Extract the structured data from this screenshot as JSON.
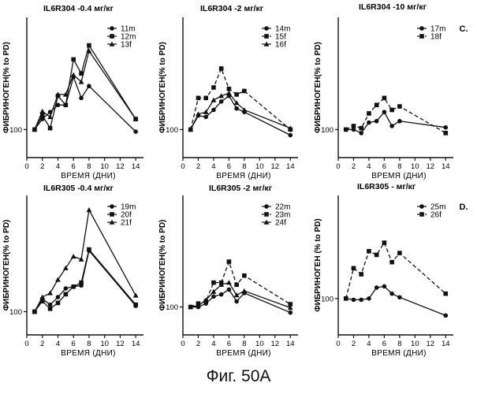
{
  "caption": "Фиг. 50A",
  "chart_data": [
    {
      "type": "line",
      "title": "IL6R304 -0.4 мг/кг",
      "corner_label": "",
      "xlabel": "ВРЕМЯ (ДНИ)",
      "ylabel": "ФИБРИНОГЕН(% to PD)",
      "x_ticks": [
        0,
        2,
        4,
        6,
        8,
        10,
        12,
        14
      ],
      "y_ticks": [
        100
      ],
      "xlim": [
        0,
        15
      ],
      "ylim": [
        60,
        260
      ],
      "legend_position": "top-right",
      "series": [
        {
          "name": "11m",
          "marker": "circle",
          "dash": "solid",
          "x": [
            1,
            2,
            3,
            4,
            5,
            6,
            7,
            8,
            14
          ],
          "y": [
            100,
            115,
            125,
            135,
            135,
            175,
            145,
            162,
            97
          ]
        },
        {
          "name": "12m",
          "marker": "square",
          "dash": "solid",
          "x": [
            1,
            2,
            3,
            4,
            5,
            6,
            7,
            8,
            14
          ],
          "y": [
            100,
            120,
            102,
            148,
            135,
            200,
            180,
            220,
            115
          ]
        },
        {
          "name": "13f",
          "marker": "triangle",
          "dash": "solid",
          "x": [
            1,
            2,
            3,
            4,
            5,
            6,
            7,
            8,
            14
          ],
          "y": [
            100,
            126,
            118,
            150,
            150,
            178,
            168,
            212,
            115
          ]
        }
      ]
    },
    {
      "type": "line",
      "title": "IL6R304 -2 мг/кг",
      "corner_label": "",
      "xlabel": "ВРЕМЯ (ДНИ)",
      "ylabel": "ФИБРИНОГЕН(% to PD)",
      "x_ticks": [
        0,
        2,
        4,
        6,
        8,
        10,
        12,
        14
      ],
      "y_ticks": [
        100
      ],
      "xlim": [
        0,
        15
      ],
      "ylim": [
        60,
        260
      ],
      "legend_position": "top-right",
      "series": [
        {
          "name": "14m",
          "marker": "circle",
          "dash": "solid",
          "x": [
            1,
            2,
            3,
            4,
            5,
            6,
            7,
            8,
            14
          ],
          "y": [
            100,
            120,
            118,
            128,
            140,
            148,
            130,
            125,
            92
          ]
        },
        {
          "name": "15f",
          "marker": "square",
          "dash": "dashed",
          "x": [
            1,
            2,
            3,
            4,
            5,
            6,
            7,
            8,
            14
          ],
          "y": [
            100,
            145,
            145,
            160,
            187,
            158,
            150,
            155,
            100
          ]
        },
        {
          "name": "16f",
          "marker": "triangle",
          "dash": "solid",
          "x": [
            1,
            2,
            3,
            4,
            5,
            6,
            7,
            8,
            14
          ],
          "y": [
            100,
            122,
            125,
            142,
            148,
            152,
            138,
            128,
            102
          ]
        }
      ]
    },
    {
      "type": "line",
      "title": "IL6R304 -10 мг/кг",
      "corner_label": "C.",
      "xlabel": "ВРЕМЯ (ДНИ)",
      "ylabel": "ФИБРИНОГЕН(% to PD)",
      "x_ticks": [
        0,
        2,
        4,
        6,
        8,
        10,
        12,
        14
      ],
      "y_ticks": [
        100
      ],
      "xlim": [
        0,
        15
      ],
      "ylim": [
        60,
        260
      ],
      "legend_position": "top-right",
      "series": [
        {
          "name": "17m",
          "marker": "circle",
          "dash": "solid",
          "x": [
            1,
            2,
            3,
            4,
            5,
            6,
            7,
            8,
            14
          ],
          "y": [
            100,
            100,
            95,
            110,
            112,
            125,
            105,
            112,
            103
          ]
        },
        {
          "name": "18f",
          "marker": "square",
          "dash": "dashed",
          "x": [
            1,
            2,
            3,
            4,
            5,
            6,
            7,
            8,
            14
          ],
          "y": [
            100,
            105,
            102,
            123,
            135,
            145,
            128,
            133,
            95
          ]
        }
      ]
    },
    {
      "type": "line",
      "title": "IL6R305 -0.4 мг/кг",
      "corner_label": "",
      "xlabel": "ВРЕМЯ (ДНИ)",
      "ylabel": "ФИБРИНОГЕН(% to PD)",
      "x_ticks": [
        0,
        2,
        4,
        6,
        8,
        10,
        12,
        14
      ],
      "y_ticks": [
        100
      ],
      "xlim": [
        0,
        15
      ],
      "ylim": [
        60,
        300
      ],
      "legend_position": "top-right",
      "series": [
        {
          "name": "19m",
          "marker": "circle",
          "dash": "solid",
          "x": [
            1,
            2,
            3,
            4,
            5,
            6,
            7,
            8,
            14
          ],
          "y": [
            100,
            122,
            112,
            125,
            140,
            143,
            145,
            205,
            110
          ]
        },
        {
          "name": "20f",
          "marker": "square",
          "dash": "solid",
          "x": [
            1,
            2,
            3,
            4,
            5,
            6,
            7,
            8,
            14
          ],
          "y": [
            100,
            118,
            105,
            115,
            130,
            143,
            150,
            207,
            112
          ]
        },
        {
          "name": "21f",
          "marker": "triangle",
          "dash": "solid",
          "x": [
            1,
            2,
            3,
            4,
            5,
            6,
            7,
            8,
            14
          ],
          "y": [
            100,
            125,
            132,
            155,
            175,
            195,
            190,
            275,
            128
          ]
        }
      ]
    },
    {
      "type": "line",
      "title": "IL6R305 -2 мг/кг",
      "corner_label": "",
      "xlabel": "ВРЕМЯ (ДНИ)",
      "ylabel": "ФИБРИНОГЕН(% to PD)",
      "x_ticks": [
        0,
        2,
        4,
        6,
        8,
        10,
        12,
        14
      ],
      "y_ticks": [
        100
      ],
      "xlim": [
        0,
        15
      ],
      "ylim": [
        60,
        260
      ],
      "legend_position": "top-right",
      "series": [
        {
          "name": "22m",
          "marker": "circle",
          "dash": "solid",
          "x": [
            1,
            2,
            3,
            4,
            5,
            6,
            7,
            8,
            14
          ],
          "y": [
            100,
            100,
            105,
            115,
            118,
            125,
            108,
            120,
            92
          ]
        },
        {
          "name": "23m",
          "marker": "square",
          "dash": "dashed",
          "x": [
            1,
            2,
            3,
            4,
            5,
            6,
            7,
            8,
            14
          ],
          "y": [
            100,
            105,
            108,
            135,
            135,
            165,
            132,
            145,
            104
          ]
        },
        {
          "name": "24f",
          "marker": "triangle",
          "dash": "solid",
          "x": [
            1,
            2,
            3,
            4,
            5,
            6,
            7,
            8,
            14
          ],
          "y": [
            100,
            102,
            110,
            122,
            132,
            135,
            117,
            123,
            99
          ]
        }
      ]
    },
    {
      "type": "line",
      "title": "IL6R305 - мг/кг",
      "corner_label": "D.",
      "xlabel": "ВРЕМЯ (ДНИ)",
      "ylabel": "ФИБРИНОГЕН (% to PD)",
      "x_ticks": [
        0,
        2,
        4,
        6,
        8,
        10,
        12,
        14
      ],
      "y_ticks": [
        100
      ],
      "xlim": [
        0,
        15
      ],
      "ylim": [
        40,
        270
      ],
      "legend_position": "top-right",
      "series": [
        {
          "name": "25m",
          "marker": "circle",
          "dash": "solid",
          "x": [
            1,
            2,
            3,
            4,
            5,
            6,
            7,
            8,
            14
          ],
          "y": [
            100,
            98,
            98,
            100,
            118,
            120,
            108,
            102,
            72
          ]
        },
        {
          "name": "26f",
          "marker": "square",
          "dash": "dashed",
          "x": [
            1,
            2,
            3,
            4,
            5,
            6,
            7,
            8,
            14
          ],
          "y": [
            100,
            150,
            140,
            178,
            172,
            192,
            160,
            175,
            108
          ]
        }
      ]
    }
  ]
}
